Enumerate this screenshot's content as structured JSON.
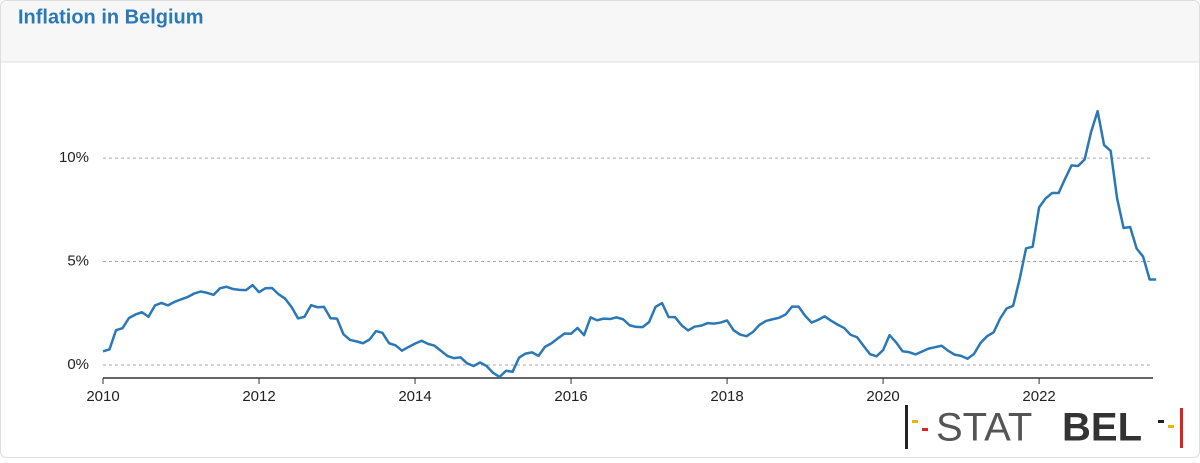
{
  "chart_data": {
    "type": "line",
    "title": "Inflation in Belgium",
    "x": [
      2010,
      2010.083,
      2010.167,
      2010.25,
      2010.333,
      2010.417,
      2010.5,
      2010.583,
      2010.667,
      2010.75,
      2010.833,
      2010.917,
      2011,
      2011.083,
      2011.167,
      2011.25,
      2011.333,
      2011.417,
      2011.5,
      2011.583,
      2011.667,
      2011.75,
      2011.833,
      2011.917,
      2012,
      2012.083,
      2012.167,
      2012.25,
      2012.333,
      2012.417,
      2012.5,
      2012.583,
      2012.667,
      2012.75,
      2012.833,
      2012.917,
      2013,
      2013.083,
      2013.167,
      2013.25,
      2013.333,
      2013.417,
      2013.5,
      2013.583,
      2013.667,
      2013.75,
      2013.833,
      2013.917,
      2014,
      2014.083,
      2014.167,
      2014.25,
      2014.333,
      2014.417,
      2014.5,
      2014.583,
      2014.667,
      2014.75,
      2014.833,
      2014.917,
      2015,
      2015.083,
      2015.167,
      2015.25,
      2015.333,
      2015.417,
      2015.5,
      2015.583,
      2015.667,
      2015.75,
      2015.833,
      2015.917,
      2016,
      2016.083,
      2016.167,
      2016.25,
      2016.333,
      2016.417,
      2016.5,
      2016.583,
      2016.667,
      2016.75,
      2016.833,
      2016.917,
      2017,
      2017.083,
      2017.167,
      2017.25,
      2017.333,
      2017.417,
      2017.5,
      2017.583,
      2017.667,
      2017.75,
      2017.833,
      2017.917,
      2018,
      2018.083,
      2018.167,
      2018.25,
      2018.333,
      2018.417,
      2018.5,
      2018.583,
      2018.667,
      2018.75,
      2018.833,
      2018.917,
      2019,
      2019.083,
      2019.167,
      2019.25,
      2019.333,
      2019.417,
      2019.5,
      2019.583,
      2019.667,
      2019.75,
      2019.833,
      2019.917,
      2020,
      2020.083,
      2020.167,
      2020.25,
      2020.333,
      2020.417,
      2020.5,
      2020.583,
      2020.667,
      2020.75,
      2020.833,
      2020.917,
      2021,
      2021.083,
      2021.167,
      2021.25,
      2021.333,
      2021.417,
      2021.5,
      2021.583,
      2021.667,
      2021.75,
      2021.833,
      2021.917,
      2022,
      2022.083,
      2022.167,
      2022.25,
      2022.333,
      2022.417,
      2022.5,
      2022.583,
      2022.667,
      2022.75,
      2022.833,
      2022.917,
      2023,
      2023.083,
      2023.167,
      2023.25,
      2023.333,
      2023.417,
      2023.5
    ],
    "series": [
      {
        "name": "Inflation",
        "color": "#2b78b6",
        "values": [
          0.66,
          0.75,
          1.68,
          1.78,
          2.27,
          2.44,
          2.55,
          2.33,
          2.88,
          3.0,
          2.88,
          3.05,
          3.17,
          3.28,
          3.45,
          3.55,
          3.49,
          3.39,
          3.71,
          3.78,
          3.67,
          3.63,
          3.62,
          3.86,
          3.52,
          3.71,
          3.72,
          3.42,
          3.21,
          2.8,
          2.25,
          2.33,
          2.89,
          2.79,
          2.81,
          2.26,
          2.24,
          1.48,
          1.21,
          1.14,
          1.05,
          1.23,
          1.64,
          1.55,
          1.05,
          0.95,
          0.69,
          0.87,
          1.03,
          1.17,
          1.02,
          0.93,
          0.68,
          0.43,
          0.33,
          0.37,
          0.08,
          -0.05,
          0.12,
          -0.05,
          -0.38,
          -0.58,
          -0.28,
          -0.33,
          0.35,
          0.55,
          0.61,
          0.44,
          0.88,
          1.05,
          1.29,
          1.52,
          1.51,
          1.79,
          1.44,
          2.3,
          2.16,
          2.24,
          2.22,
          2.3,
          2.21,
          1.92,
          1.84,
          1.83,
          2.07,
          2.81,
          2.99,
          2.32,
          2.31,
          1.92,
          1.67,
          1.85,
          1.9,
          2.02,
          2.0,
          2.05,
          2.15,
          1.68,
          1.47,
          1.39,
          1.6,
          1.94,
          2.13,
          2.21,
          2.28,
          2.44,
          2.82,
          2.82,
          2.38,
          2.05,
          2.18,
          2.35,
          2.14,
          1.95,
          1.79,
          1.46,
          1.34,
          0.92,
          0.52,
          0.42,
          0.72,
          1.44,
          1.09,
          0.66,
          0.62,
          0.51,
          0.65,
          0.79,
          0.86,
          0.93,
          0.69,
          0.5,
          0.44,
          0.3,
          0.54,
          1.07,
          1.39,
          1.58,
          2.24,
          2.73,
          2.86,
          4.14,
          5.64,
          5.71,
          7.62,
          8.05,
          8.31,
          8.31,
          9.0,
          9.65,
          9.62,
          9.93,
          11.27,
          12.27,
          10.63,
          10.35,
          8.05,
          6.62,
          6.67,
          5.63,
          5.24,
          4.13,
          4.13
        ]
      }
    ],
    "xlim": [
      2010,
      2023.46
    ],
    "xticks": [
      2010,
      2012,
      2014,
      2016,
      2018,
      2020,
      2022
    ],
    "ylim": [
      -0.63,
      14.5
    ],
    "yticks": [
      {
        "value": 0,
        "label": "0%"
      },
      {
        "value": 5,
        "label": "5%"
      },
      {
        "value": 10,
        "label": "10%"
      }
    ],
    "grid": true
  },
  "logo": {
    "light": "STAT",
    "bold": "BEL"
  }
}
